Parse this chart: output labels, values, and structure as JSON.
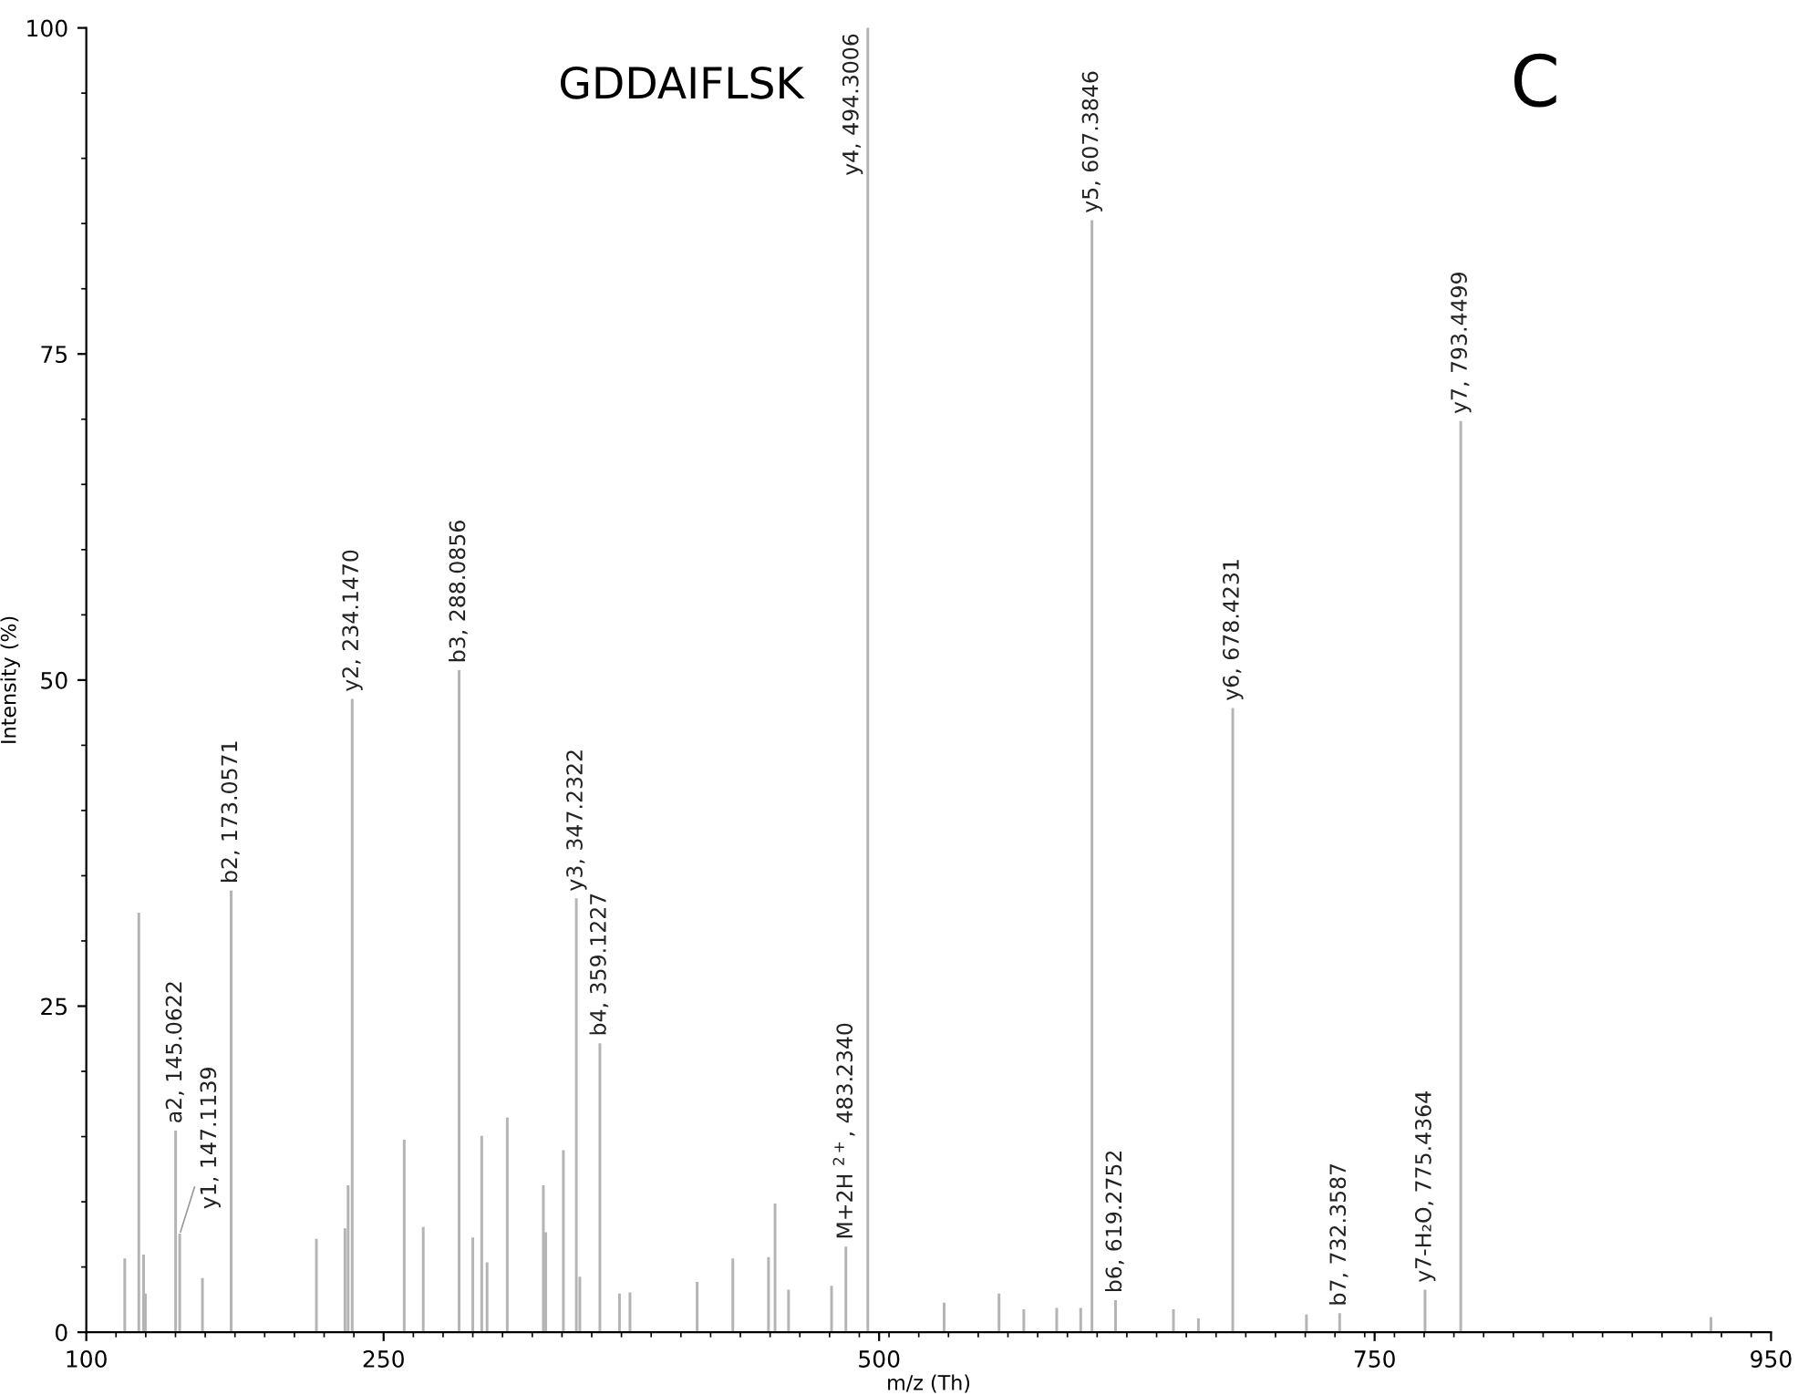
{
  "chart_data": {
    "type": "bar",
    "title": "GDDAIFLSK",
    "xlabel": "m/z (Th)",
    "ylabel": "Intensity (%)",
    "annotations": [
      "C"
    ],
    "x": [
      119.4,
      126.5,
      128.9,
      129.8,
      145.0622,
      147.1139,
      158.6,
      173.0571,
      216.1,
      230.5,
      232.1,
      234.147,
      260.4,
      270.0,
      288.0856,
      295.0,
      299.5,
      302.2,
      312.4,
      330.6,
      331.8,
      340.7,
      347.2322,
      349.0,
      359.1227,
      369.0,
      374.3,
      408.2,
      426.2,
      444.2,
      447.5,
      454.3,
      476.0,
      483.234,
      494.3006,
      532.8,
      560.5,
      573.0,
      589.6,
      601.7,
      607.3846,
      619.2752,
      648.5,
      661.1,
      678.4231,
      715.6,
      732.3587,
      775.4364,
      793.4499,
      919.7
    ],
    "values": [
      5.6,
      32.1,
      5.9,
      2.9,
      15.4,
      7.5,
      4.1,
      33.8,
      7.1,
      7.9,
      11.2,
      48.5,
      14.7,
      8.0,
      50.7,
      7.2,
      15.0,
      5.3,
      16.4,
      11.2,
      7.6,
      13.9,
      33.2,
      4.2,
      22.1,
      2.9,
      3.0,
      3.8,
      5.6,
      5.7,
      9.8,
      3.2,
      3.5,
      6.5,
      100,
      2.2,
      2.9,
      1.7,
      1.8,
      1.8,
      85.2,
      2.4,
      1.7,
      1.0,
      47.8,
      1.3,
      1.4,
      3.2,
      69.8,
      1.1
    ],
    "value_labels": [
      null,
      null,
      null,
      null,
      "a2, 145.0622",
      "y1, 147.1139",
      null,
      "b2, 173.0571",
      null,
      null,
      null,
      "y2, 234.1470",
      null,
      null,
      "b3, 288.0856",
      null,
      null,
      null,
      null,
      null,
      null,
      null,
      "y3, 347.2322",
      null,
      "b4, 359.1227",
      null,
      null,
      null,
      null,
      null,
      null,
      null,
      null,
      "M+2H $^{2+}$, 483.2340",
      "y4, 494.3006",
      null,
      null,
      null,
      null,
      null,
      "y5, 607.3846",
      "b6, 619.2752",
      null,
      null,
      "y6, 678.4231",
      null,
      "b7, 732.3587",
      "y7-H₂O, 775.4364",
      "y7, 793.4499",
      null
    ],
    "color": "#b4b4b4",
    "xlim": [
      100,
      950
    ],
    "ylim": [
      0,
      100
    ],
    "xticks": [
      100,
      250,
      500,
      750,
      950
    ],
    "yticks": [
      0,
      25,
      50,
      75,
      100
    ],
    "grid": false,
    "legend": false
  }
}
